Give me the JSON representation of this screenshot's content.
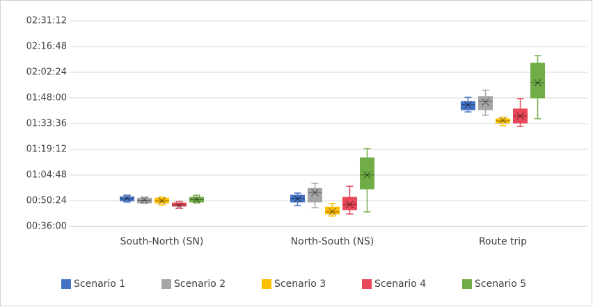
{
  "chart_data": {
    "type": "box",
    "categories": [
      "South-North (SN)",
      "North-South (NS)",
      "Route trip"
    ],
    "series": [
      {
        "name": "Scenario 1",
        "color": "#4472c4",
        "values": [
          {
            "min": 2980,
            "q1": 3020,
            "median": 3090,
            "q3": 3160,
            "max": 3210,
            "mean": 3110
          },
          {
            "min": 2860,
            "q1": 2980,
            "median": 3100,
            "q3": 3210,
            "max": 3280,
            "mean": 3090
          },
          {
            "min": 6010,
            "q1": 6080,
            "median": 6250,
            "q3": 6360,
            "max": 6500,
            "mean": 6250
          }
        ]
      },
      {
        "name": "Scenario 2",
        "color": "#a5a5a5",
        "values": [
          {
            "min": 2930,
            "q1": 2950,
            "median": 3040,
            "q3": 3110,
            "max": 3140,
            "mean": 3060
          },
          {
            "min": 2790,
            "q1": 2980,
            "median": 3300,
            "q3": 3440,
            "max": 3610,
            "mean": 3300
          },
          {
            "min": 5900,
            "q1": 6080,
            "median": 6360,
            "q3": 6530,
            "max": 6740,
            "mean": 6340
          }
        ]
      },
      {
        "name": "Scenario 3",
        "color": "#ffc000",
        "values": [
          {
            "min": 2880,
            "q1": 2950,
            "median": 3020,
            "q3": 3110,
            "max": 3140,
            "mean": 3020
          },
          {
            "min": 2510,
            "q1": 2580,
            "median": 2650,
            "q3": 2810,
            "max": 2930,
            "mean": 2660
          },
          {
            "min": 5550,
            "q1": 5640,
            "median": 5710,
            "q3": 5780,
            "max": 5830,
            "mean": 5730
          }
        ]
      },
      {
        "name": "Scenario 4",
        "color": "#e8485a",
        "values": [
          {
            "min": 2770,
            "q1": 2840,
            "median": 2880,
            "q3": 2950,
            "max": 3000,
            "mean": 2860
          },
          {
            "min": 2580,
            "q1": 2720,
            "median": 2900,
            "q3": 3140,
            "max": 3510,
            "mean": 2900
          },
          {
            "min": 5520,
            "q1": 5640,
            "median": 5870,
            "q3": 6110,
            "max": 6460,
            "mean": 5870
          }
        ]
      },
      {
        "name": "Scenario 5",
        "color": "#70ad47",
        "values": [
          {
            "min": 2950,
            "q1": 2980,
            "median": 3060,
            "q3": 3140,
            "max": 3210,
            "mean": 3070
          },
          {
            "min": 2650,
            "q1": 3420,
            "median": 3890,
            "q3": 4470,
            "max": 4775,
            "mean": 3890
          },
          {
            "min": 5780,
            "q1": 6480,
            "median": 6990,
            "q3": 7650,
            "max": 7900,
            "mean": 6990
          }
        ]
      }
    ],
    "ylim": [
      2160,
      9072
    ],
    "yticks": [
      {
        "value": 2160,
        "label": "00:36:00"
      },
      {
        "value": 3024,
        "label": "00:50:24"
      },
      {
        "value": 3888,
        "label": "01:04:48"
      },
      {
        "value": 4752,
        "label": "01:19:12"
      },
      {
        "value": 5616,
        "label": "01:33:36"
      },
      {
        "value": 6480,
        "label": "01:48:00"
      },
      {
        "value": 7344,
        "label": "02:02:24"
      },
      {
        "value": 8208,
        "label": "02:16:48"
      },
      {
        "value": 9072,
        "label": "02:31:12"
      }
    ],
    "grid": true,
    "legend": "bottom"
  }
}
